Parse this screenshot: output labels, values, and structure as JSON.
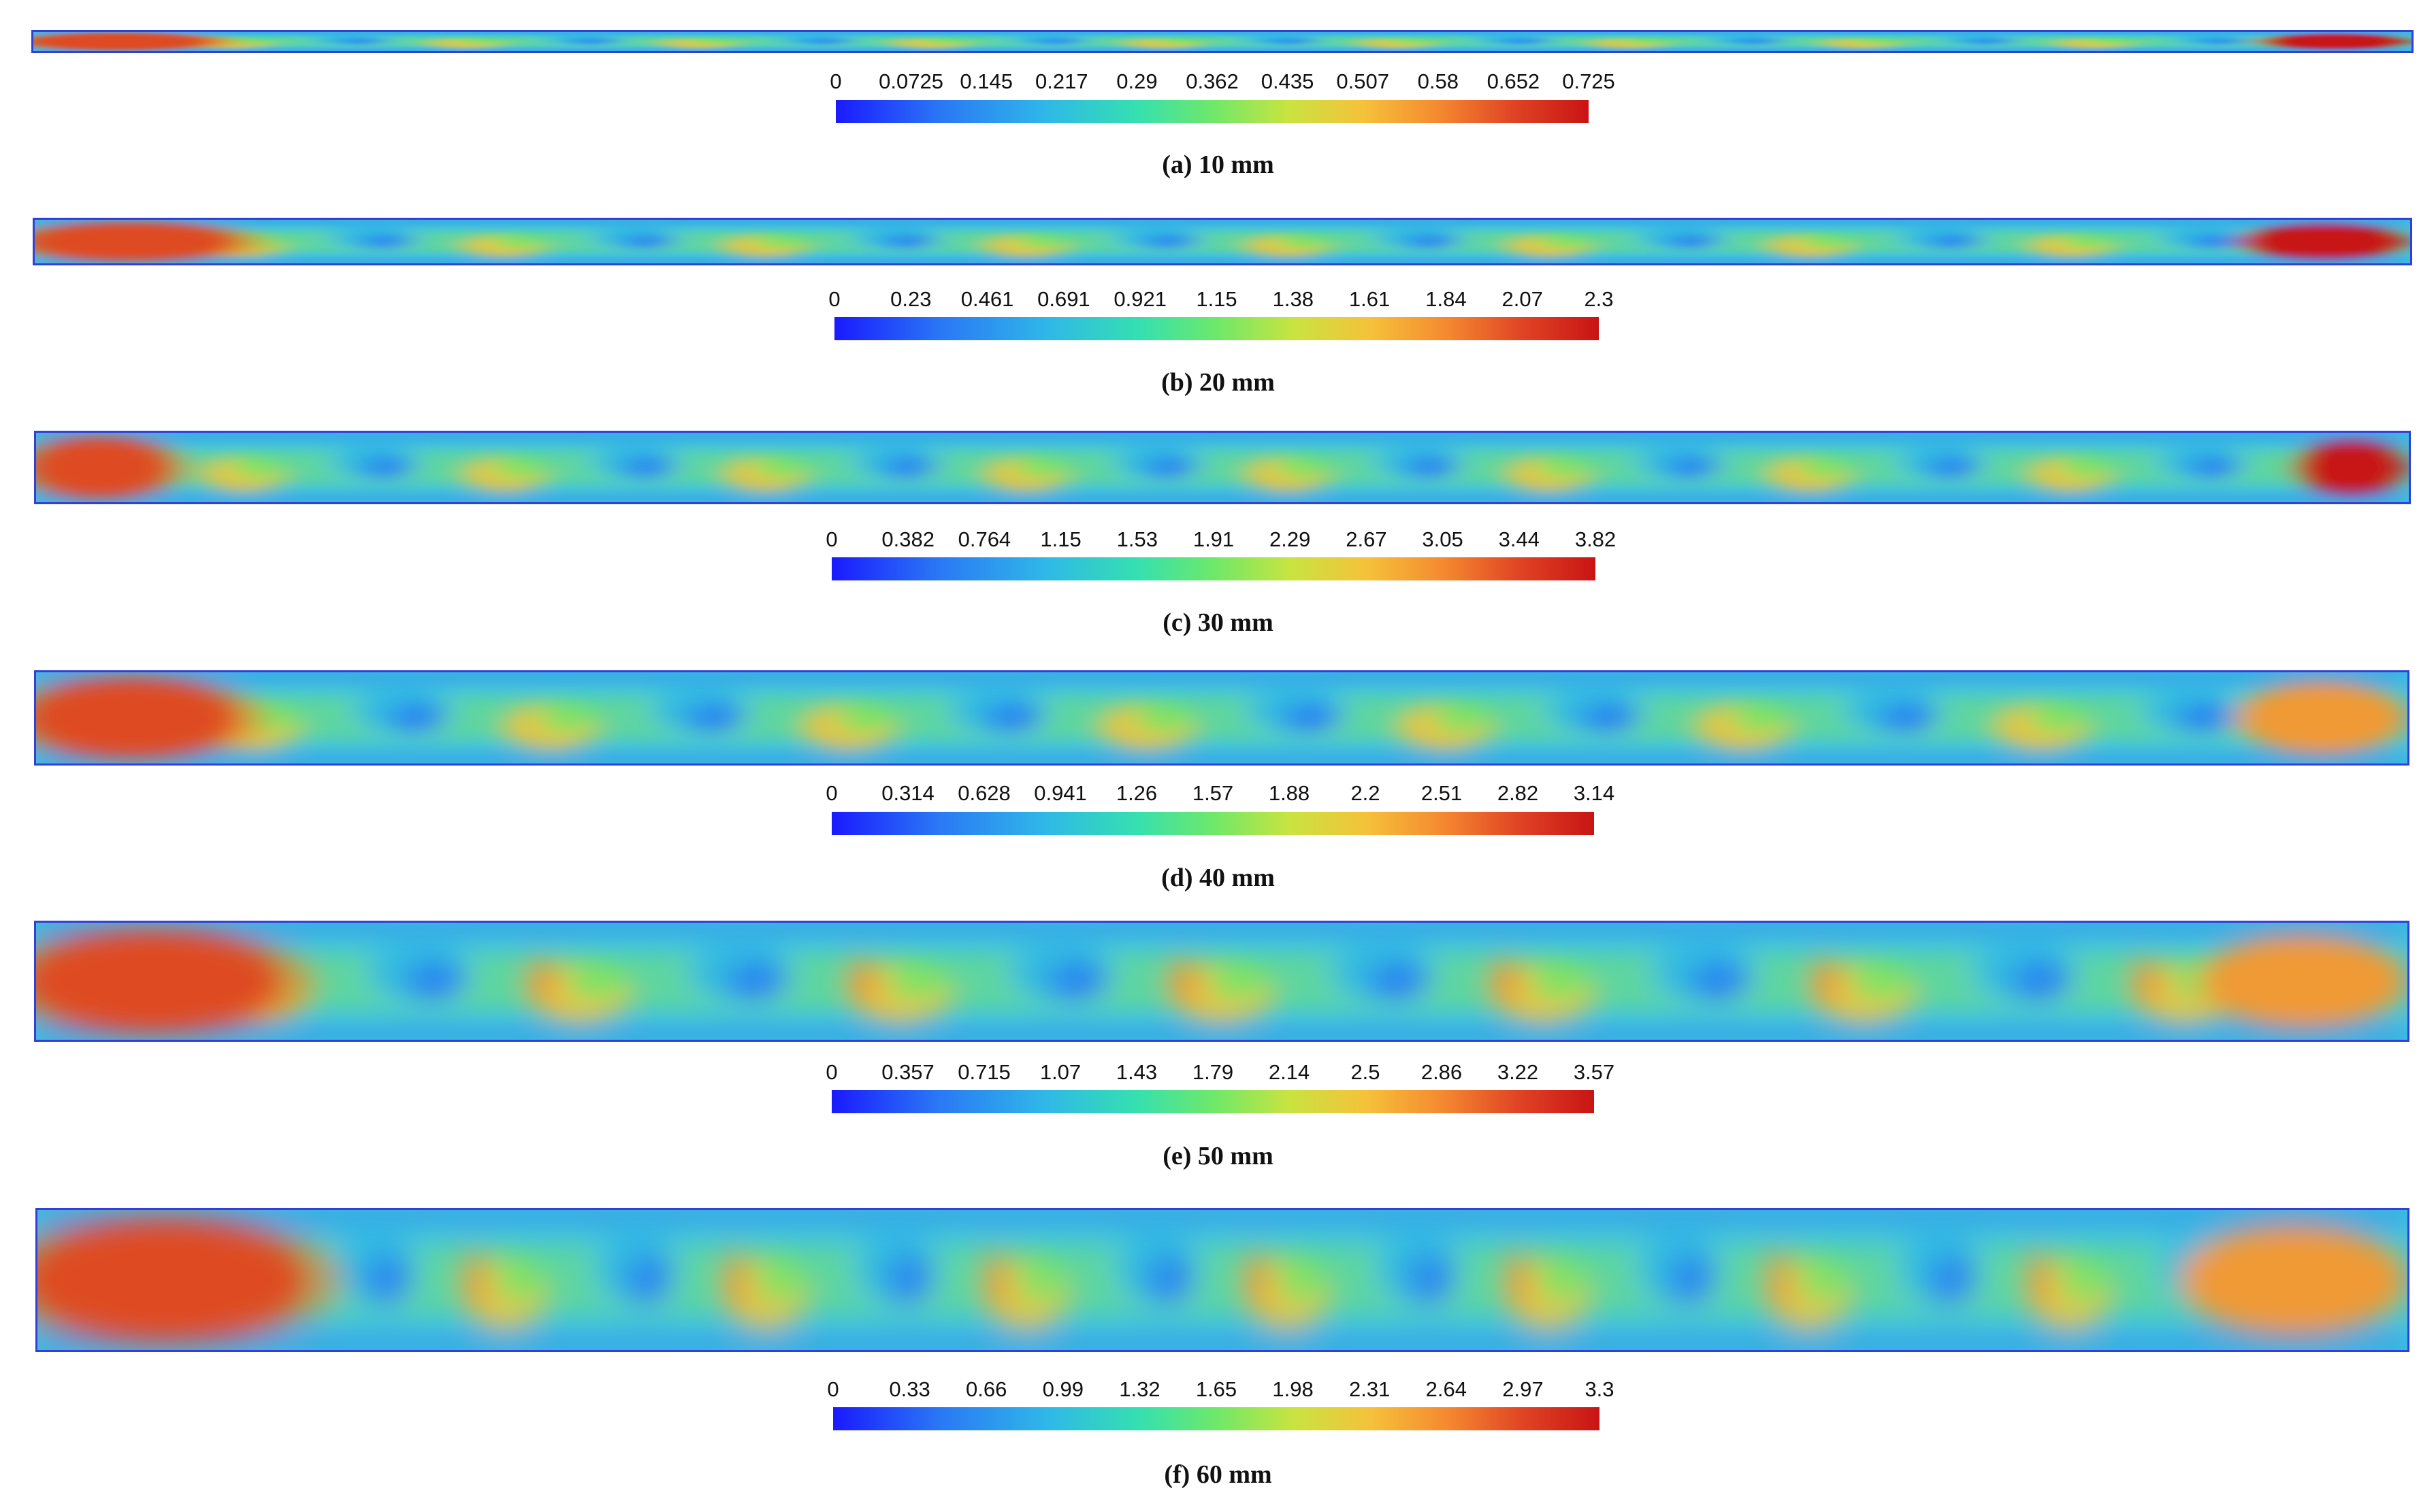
{
  "panels": [
    {
      "caption": "(a) 10 mm",
      "scale_max": 0.725,
      "tick_labels": [
        "0",
        "0.0725",
        "0.145",
        "0.217",
        "0.29",
        "0.362",
        "0.435",
        "0.507",
        "0.58",
        "0.652",
        "0.725"
      ]
    },
    {
      "caption": "(b) 20 mm",
      "scale_max": 2.3,
      "tick_labels": [
        "0",
        "0.23",
        "0.461",
        "0.691",
        "0.921",
        "1.15",
        "1.38",
        "1.61",
        "1.84",
        "2.07",
        "2.3"
      ]
    },
    {
      "caption": "(c) 30 mm",
      "scale_max": 3.82,
      "tick_labels": [
        "0",
        "0.382",
        "0.764",
        "1.15",
        "1.53",
        "1.91",
        "2.29",
        "2.67",
        "3.05",
        "3.44",
        "3.82"
      ]
    },
    {
      "caption": "(d) 40 mm",
      "scale_max": 3.14,
      "tick_labels": [
        "0",
        "0.314",
        "0.628",
        "0.941",
        "1.26",
        "1.57",
        "1.88",
        "2.2",
        "2.51",
        "2.82",
        "3.14"
      ]
    },
    {
      "caption": "(e) 50 mm",
      "scale_max": 3.57,
      "tick_labels": [
        "0",
        "0.357",
        "0.715",
        "1.07",
        "1.43",
        "1.79",
        "2.14",
        "2.5",
        "2.86",
        "3.22",
        "3.57"
      ]
    },
    {
      "caption": "(f) 60 mm",
      "scale_max": 3.3,
      "tick_labels": [
        "0",
        "0.33",
        "0.66",
        "0.99",
        "1.32",
        "1.65",
        "1.98",
        "2.31",
        "2.64",
        "2.97",
        "3.3"
      ]
    }
  ],
  "colormap": [
    "#1a1aff",
    "#2fb8e8",
    "#6ee86a",
    "#f5c23a",
    "#c81414"
  ]
}
